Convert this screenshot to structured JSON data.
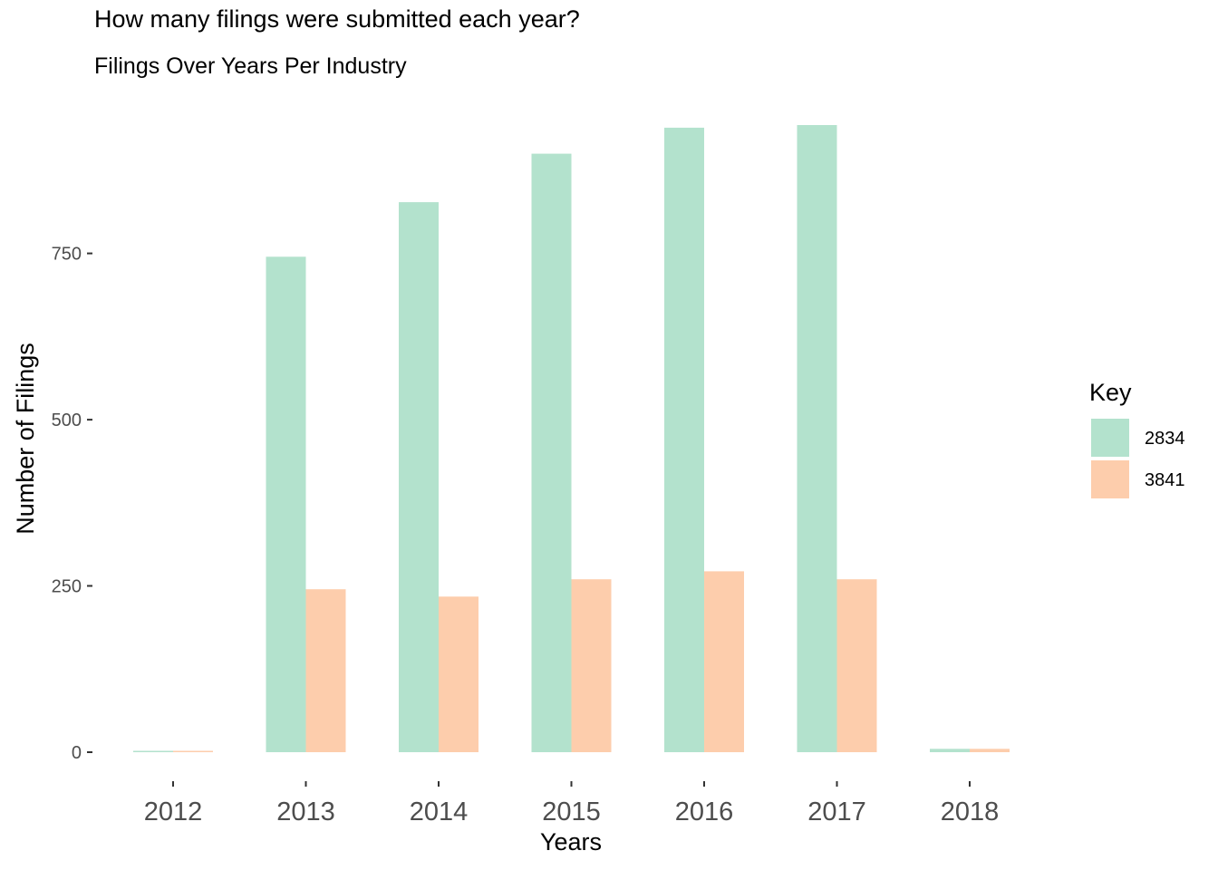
{
  "chart_data": {
    "type": "bar",
    "title": "How many filings were submitted each year?",
    "subtitle": "Filings Over Years Per Industry",
    "xlabel": "Years",
    "ylabel": "Number of Filings",
    "categories": [
      "2012",
      "2013",
      "2014",
      "2015",
      "2016",
      "2017",
      "2018"
    ],
    "series": [
      {
        "name": "2834",
        "values": [
          2,
          745,
          827,
          900,
          939,
          943,
          5
        ],
        "color": "#b3e2cd"
      },
      {
        "name": "3841",
        "values": [
          2,
          245,
          234,
          260,
          272,
          260,
          5
        ],
        "color": "#fdcdac"
      }
    ],
    "ylim": [
      0,
      943
    ],
    "yticks": [
      0,
      250,
      500,
      750
    ],
    "y_tick_labels": [
      "0",
      "250",
      "500",
      "750"
    ],
    "grid": false,
    "legend": {
      "title": "Key",
      "position": "right"
    }
  }
}
